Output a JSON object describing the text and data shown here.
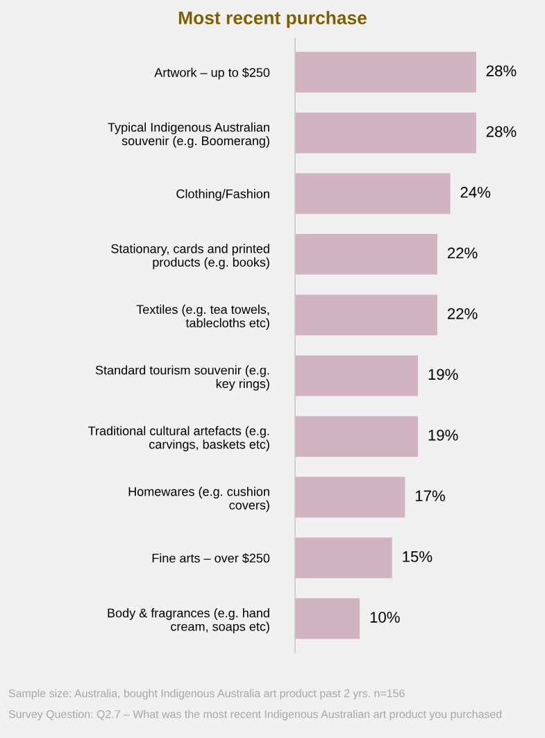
{
  "chart_data": {
    "type": "bar",
    "orientation": "horizontal",
    "title": "Most recent purchase",
    "categories": [
      "Artwork – up to $250",
      "Typical Indigenous Australian\nsouvenir (e.g. Boomerang)",
      "Clothing/Fashion",
      "Stationary, cards and printed\nproducts (e.g. books)",
      "Textiles (e.g. tea towels,\ntablecloths etc)",
      "Standard tourism souvenir (e.g.\nkey rings)",
      "Traditional cultural artefacts (e.g.\ncarvings, baskets etc)",
      "Homewares (e.g. cushion\ncovers)",
      "Fine arts – over $250",
      "Body & fragrances (e.g. hand\ncream, soaps etc)"
    ],
    "values": [
      28,
      28,
      24,
      22,
      22,
      19,
      19,
      17,
      15,
      10
    ],
    "value_labels": [
      "28%",
      "28%",
      "24%",
      "22%",
      "22%",
      "19%",
      "19%",
      "17%",
      "15%",
      "10%"
    ],
    "color": "#d1b3c2",
    "grid": false,
    "legend": false,
    "annotations": [
      "Sample size: Australia, bought Indigenous Australia art product past 2 yrs. n=156",
      "Survey Question: Q2.7 – What was the most recent Indigenous Australian art product you purchased"
    ]
  }
}
